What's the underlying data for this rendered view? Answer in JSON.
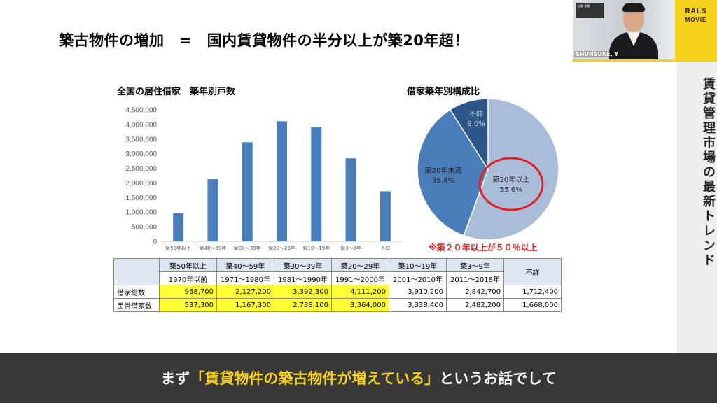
{
  "slide": {
    "title": "築古物件の増加　=　国内賃貸物件の半分以上が築20年超！",
    "side_label": "賃貸管理市場の最新トレンド"
  },
  "brand": {
    "name": "RALS",
    "sub": "MOVIE"
  },
  "webcam": {
    "name": "SHUNSUKE, Y",
    "sign_text": "吉野 俊輔"
  },
  "caption": {
    "pre": "まず",
    "highlight": "「賃貸物件の築古物件が増えている」",
    "post": "というお話でして"
  },
  "colors": {
    "bar": "#4a7ebb",
    "table_header": "#dde6f1",
    "highlight_cell": "#ffff33",
    "note_red": "#e52020",
    "brand_yellow": "#f4d21c"
  },
  "chart_data": [
    {
      "type": "bar",
      "title": "全国の居住借家　築年別戸数",
      "categories": [
        "築50年以上",
        "築40～59年",
        "築30～39年",
        "築20～29年",
        "築10～19年",
        "築3～9年",
        "不詳"
      ],
      "values": [
        968700,
        2127200,
        3392300,
        4111200,
        3910200,
        2842700,
        1712400
      ],
      "ylim": [
        0,
        4500000
      ],
      "yticks": [
        "0",
        "500,000",
        "1,000,000",
        "1,500,000",
        "2,000,000",
        "2,500,000",
        "3,000,000",
        "3,500,000",
        "4,000,000",
        "4,500,000"
      ],
      "grid": false
    },
    {
      "type": "pie",
      "title": "借家築年別構成比",
      "slices": [
        {
          "label": "築20年以上",
          "pct": "55.6%",
          "value": 55.6,
          "color": "#a9bcd8"
        },
        {
          "label": "築20年未満",
          "pct": "35.4%",
          "value": 35.4,
          "color": "#4a7ebb"
        },
        {
          "label": "不詳",
          "pct": "9.0%",
          "value": 9.0,
          "color": "#2b5687"
        }
      ],
      "note": "※築２０年以上が５０％以上"
    }
  ],
  "table": {
    "header_top": [
      "築50年以上",
      "築40～59年",
      "築30～39年",
      "築20～29年",
      "築10～19年",
      "築3～9年",
      "不詳"
    ],
    "header_bottom": [
      "1970年以前",
      "1971～1980年",
      "1981～1990年",
      "1991～2000年",
      "2001～2010年",
      "2011～2018年"
    ],
    "rows": [
      {
        "label": "借家総数",
        "values": [
          "968,700",
          "2,127,200",
          "3,392,300",
          "4,111,200",
          "3,910,200",
          "2,842,700",
          "1,712,400"
        ]
      },
      {
        "label": "民営借家数",
        "values": [
          "537,300",
          "1,167,300",
          "2,738,100",
          "3,364,000",
          "3,338,400",
          "2,482,200",
          "1,668,000"
        ]
      }
    ]
  }
}
